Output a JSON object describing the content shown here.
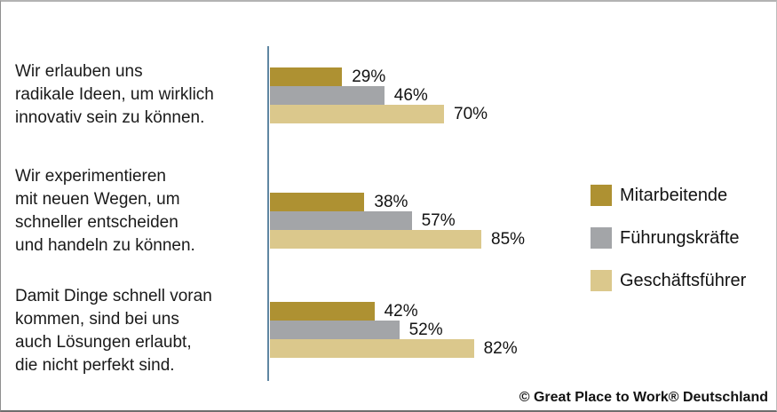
{
  "colors": {
    "series": [
      "#ae9132",
      "#a3a5a8",
      "#dbc88c"
    ],
    "axis_line": "#5f86a2",
    "text": "#1a1a1a"
  },
  "chart_data": {
    "type": "bar",
    "orientation": "horizontal",
    "unit": "%",
    "xlim": [
      0,
      100
    ],
    "grid": false,
    "legend_position": "right",
    "series_names": [
      "Mitarbeitende",
      "Führungskräfte",
      "Geschäftsführer"
    ],
    "groups": [
      {
        "label": "Wir erlauben uns\nradikale Ideen, um wirklich\ninnovativ sein zu können.",
        "values": [
          29,
          46,
          70
        ],
        "value_labels": [
          "29%",
          "46%",
          "70%"
        ]
      },
      {
        "label": "Wir experimentieren\nmit neuen Wegen, um\nschneller entscheiden\nund handeln zu können.",
        "values": [
          38,
          57,
          85
        ],
        "value_labels": [
          "38%",
          "57%",
          "85%"
        ]
      },
      {
        "label": "Damit Dinge schnell voran\nkommen, sind bei uns\nauch Lösungen erlaubt,\ndie nicht perfekt sind.",
        "values": [
          42,
          52,
          82
        ],
        "value_labels": [
          "42%",
          "52%",
          "82%"
        ]
      }
    ]
  },
  "legend": {
    "items": [
      {
        "label": "Mitarbeitende"
      },
      {
        "label": "Führungskräfte"
      },
      {
        "label": "Geschäftsführer"
      }
    ]
  },
  "footer": {
    "copyright": "© Great Place to Work® Deutschland"
  }
}
